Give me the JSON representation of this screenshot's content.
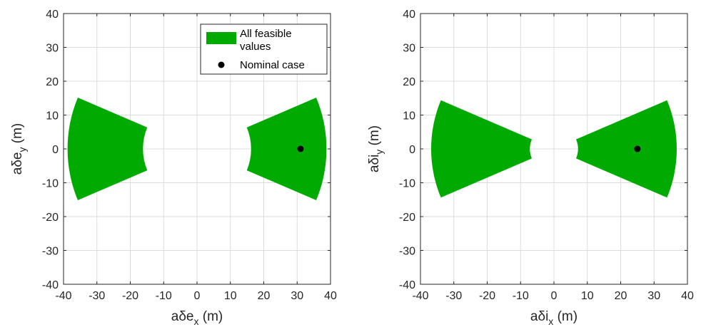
{
  "chart_data": [
    {
      "type": "scatter",
      "xlim": [
        -40,
        40
      ],
      "ylim": [
        -40,
        40
      ],
      "xticks": [
        -40,
        -30,
        -20,
        -10,
        0,
        10,
        20,
        30,
        40
      ],
      "yticks": [
        -40,
        -30,
        -20,
        -10,
        0,
        10,
        20,
        30,
        40
      ],
      "grid": true,
      "xlabel": {
        "base": "aδe",
        "sub": "x",
        "unit": " (m)"
      },
      "ylabel": {
        "base": "aδe",
        "sub": "y",
        "unit": " (m)"
      },
      "legend": {
        "placement": "top-right",
        "entries": [
          {
            "label_line1": "All feasible",
            "label_line2": "values",
            "kind": "patch",
            "color": "#00aa00"
          },
          {
            "label_line1": "Nominal case",
            "kind": "point",
            "color": "#000000"
          }
        ]
      },
      "regions": [
        {
          "name": "All feasible values",
          "color": "#00aa00",
          "r_inner": 16.2,
          "r_outer": 38.8,
          "half_angle_deg": 23,
          "side": "left"
        },
        {
          "name": "All feasible values",
          "color": "#00aa00",
          "r_inner": 16.2,
          "r_outer": 38.8,
          "half_angle_deg": 23,
          "side": "right"
        }
      ],
      "points": [
        {
          "name": "Nominal case",
          "x": 31,
          "y": 0,
          "color": "#000000"
        }
      ]
    },
    {
      "type": "scatter",
      "xlim": [
        -40,
        40
      ],
      "ylim": [
        -40,
        40
      ],
      "xticks": [
        -40,
        -30,
        -20,
        -10,
        0,
        10,
        20,
        30,
        40
      ],
      "yticks": [
        -40,
        -30,
        -20,
        -10,
        0,
        10,
        20,
        30,
        40
      ],
      "grid": true,
      "xlabel": {
        "base": "aδi",
        "sub": "x",
        "unit": " (m)"
      },
      "ylabel": {
        "base": "aδi",
        "sub": "y",
        "unit": " (m)"
      },
      "regions": [
        {
          "name": "All feasible values",
          "color": "#00aa00",
          "r_inner": 7.2,
          "r_outer": 36.8,
          "half_angle_deg": 23,
          "side": "left"
        },
        {
          "name": "All feasible values",
          "color": "#00aa00",
          "r_inner": 7.2,
          "r_outer": 36.8,
          "half_angle_deg": 23,
          "side": "right"
        }
      ],
      "points": [
        {
          "name": "Nominal case",
          "x": 25,
          "y": 0,
          "color": "#000000"
        }
      ]
    }
  ]
}
